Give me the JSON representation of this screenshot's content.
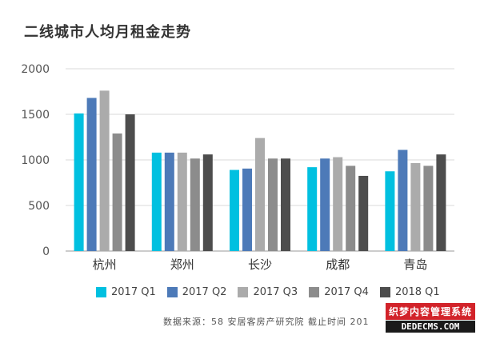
{
  "chart_data": {
    "type": "bar",
    "title": "二线城市人均月租金走势",
    "categories": [
      "杭州",
      "郑州",
      "长沙",
      "成都",
      "青岛"
    ],
    "series": [
      {
        "name": "2017 Q1",
        "color": "#00c0e0",
        "values": [
          1510,
          1080,
          890,
          920,
          875
        ]
      },
      {
        "name": "2017 Q2",
        "color": "#4d7ab8",
        "values": [
          1680,
          1080,
          905,
          1015,
          1110
        ]
      },
      {
        "name": "2017 Q3",
        "color": "#ababab",
        "values": [
          1760,
          1080,
          1240,
          1030,
          965
        ]
      },
      {
        "name": "2017 Q4",
        "color": "#8c8c8c",
        "values": [
          1290,
          1015,
          1015,
          935,
          935
        ]
      },
      {
        "name": "2018 Q1",
        "color": "#4d4d4d",
        "values": [
          1500,
          1060,
          1015,
          825,
          1060
        ]
      }
    ],
    "ylim": [
      0,
      2000
    ],
    "yticks": [
      0,
      500,
      1000,
      1500,
      2000
    ],
    "grid": true,
    "legend_position": "bottom"
  },
  "source_text": "数据来源：58 安居客房产研究院  截止时间 201",
  "watermark": {
    "line1": "织梦内容管理系统",
    "line2": "DEDECMS.COM"
  }
}
